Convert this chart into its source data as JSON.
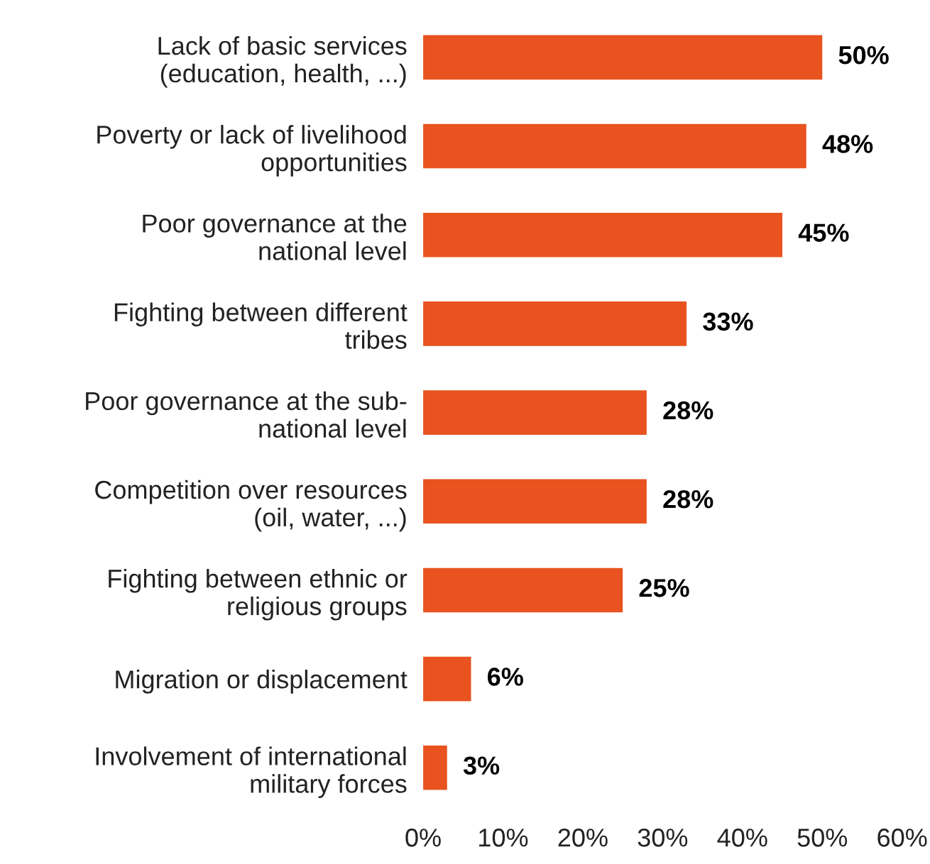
{
  "chart_data": {
    "type": "bar",
    "orientation": "horizontal",
    "categories": [
      "Lack of basic services\n(education, health, ...)",
      "Poverty or lack of livelihood\nopportunities",
      "Poor governance at the\nnational level",
      "Fighting between different\ntribes",
      "Poor governance at the sub-\nnational level",
      "Competition over resources\n(oil, water, ...)",
      "Fighting between ethnic or\nreligious groups",
      "Migration or displacement",
      "Involvement of international\nmilitary forces"
    ],
    "values": [
      50,
      48,
      45,
      33,
      28,
      28,
      25,
      6,
      3
    ],
    "value_labels": [
      "50%",
      "48%",
      "45%",
      "33%",
      "28%",
      "28%",
      "25%",
      "6%",
      "3%"
    ],
    "color": "#e8531f",
    "xlim": [
      0,
      60
    ],
    "xticks": [
      {
        "value": 0,
        "label": "0%"
      },
      {
        "value": 10,
        "label": "10%"
      },
      {
        "value": 20,
        "label": "20%"
      },
      {
        "value": 30,
        "label": "30%"
      },
      {
        "value": 40,
        "label": "40%"
      },
      {
        "value": 50,
        "label": "50%"
      },
      {
        "value": 60,
        "label": "60%"
      }
    ],
    "grid": false,
    "legend": false
  }
}
